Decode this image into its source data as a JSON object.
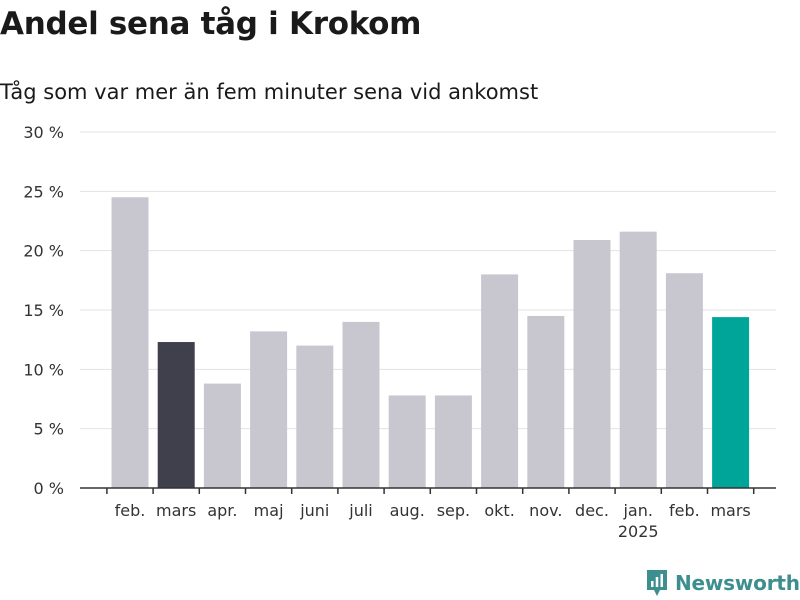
{
  "header": {
    "title": "Andel sena tåg i Krokom",
    "subtitle": "Tåg som var mer än fem minuter sena vid ankomst"
  },
  "brand": {
    "name": "Newsworthy",
    "color": "#3d8f8f"
  },
  "chart_data": {
    "type": "bar",
    "categories": [
      "feb.",
      "mars",
      "apr.",
      "maj",
      "juni",
      "juli",
      "aug.",
      "sep.",
      "okt.",
      "nov.",
      "dec.",
      "jan.",
      "feb.",
      "mars"
    ],
    "category_sublabels": [
      "",
      "",
      "",
      "",
      "",
      "",
      "",
      "",
      "",
      "",
      "",
      "2025",
      "",
      ""
    ],
    "values": [
      24.5,
      12.3,
      8.8,
      13.2,
      12.0,
      14.0,
      7.8,
      7.8,
      18.0,
      14.5,
      20.9,
      21.6,
      18.1,
      14.4
    ],
    "bar_colors": [
      "#c8c7d0",
      "#403f4c",
      "#c8c7d0",
      "#c8c7d0",
      "#c8c7d0",
      "#c8c7d0",
      "#c8c7d0",
      "#c8c7d0",
      "#c8c7d0",
      "#c8c7d0",
      "#c8c7d0",
      "#c8c7d0",
      "#c8c7d0",
      "#00a59a"
    ],
    "yticks": [
      0,
      5,
      10,
      15,
      20,
      25,
      30
    ],
    "ytick_labels": [
      "0 %",
      "5 %",
      "10 %",
      "15 %",
      "20 %",
      "25 %",
      "30 %"
    ],
    "ylim": [
      0,
      30
    ],
    "grid": true,
    "xlabel": "",
    "ylabel": ""
  }
}
